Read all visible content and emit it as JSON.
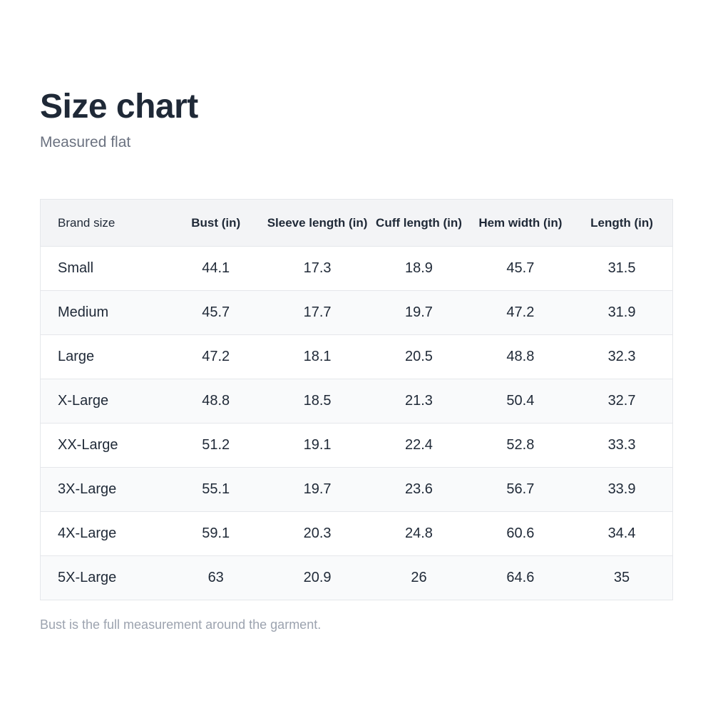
{
  "header": {
    "title": "Size chart",
    "subtitle": "Measured flat"
  },
  "table": {
    "columns": [
      "Brand size",
      "Bust (in)",
      "Sleeve length (in)",
      "Cuff length (in)",
      "Hem width (in)",
      "Length (in)"
    ],
    "rows": [
      [
        "Small",
        44.1,
        17.3,
        18.9,
        45.7,
        31.5
      ],
      [
        "Medium",
        45.7,
        17.7,
        19.7,
        47.2,
        31.9
      ],
      [
        "Large",
        47.2,
        18.1,
        20.5,
        48.8,
        32.3
      ],
      [
        "X-Large",
        48.8,
        18.5,
        21.3,
        50.4,
        32.7
      ],
      [
        "XX-Large",
        51.2,
        19.1,
        22.4,
        52.8,
        33.3
      ],
      [
        "3X-Large",
        55.1,
        19.7,
        23.6,
        56.7,
        33.9
      ],
      [
        "4X-Large",
        59.1,
        20.3,
        24.8,
        60.6,
        34.4
      ],
      [
        "5X-Large",
        63,
        20.9,
        26,
        64.6,
        35
      ]
    ]
  },
  "footnote": "Bust is the full measurement around the garment."
}
